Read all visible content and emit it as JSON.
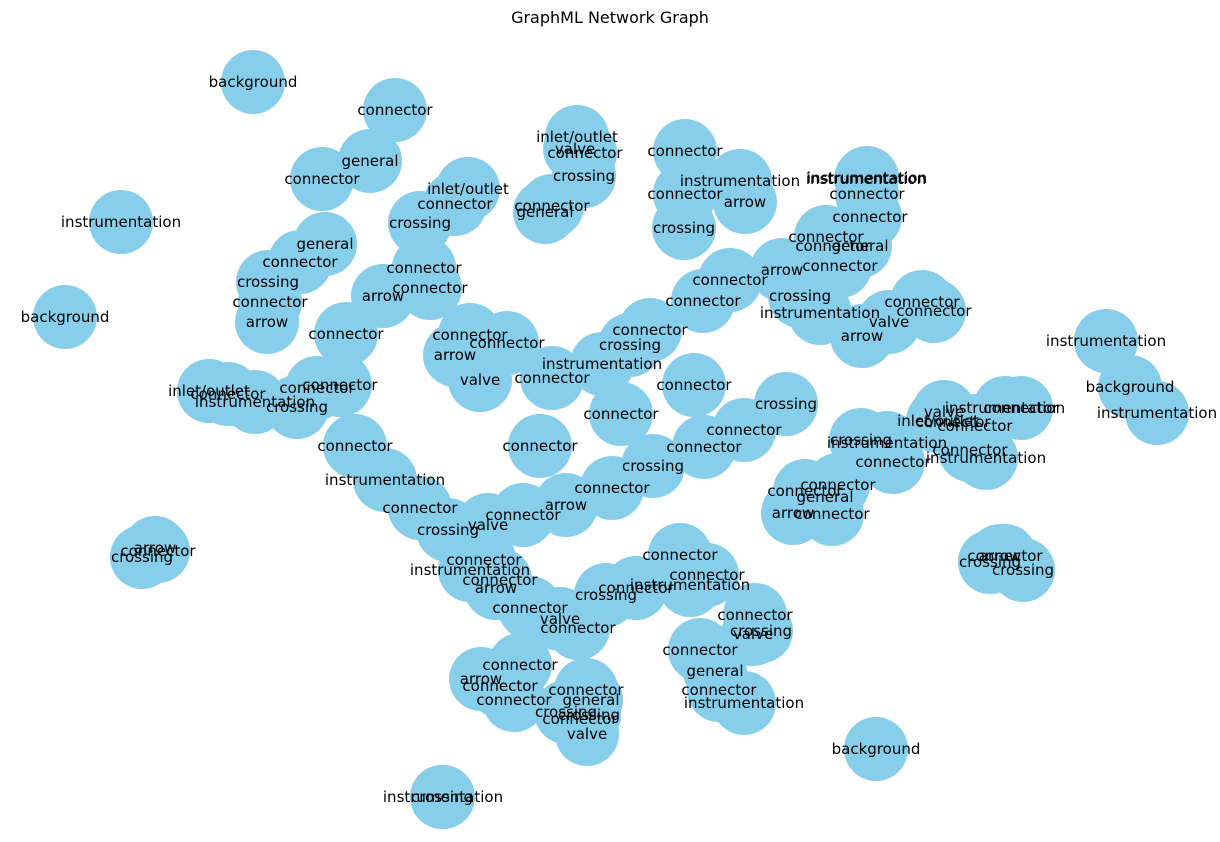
{
  "title": "GraphML Network Graph",
  "colors": {
    "node_fill": "#87ceeb",
    "label": "#000000",
    "background": "#ffffff"
  },
  "nodes": [
    {
      "id": "n1",
      "label": "background"
    },
    {
      "id": "n2",
      "label": "instrumentation"
    },
    {
      "id": "n3",
      "label": "background"
    },
    {
      "id": "n4",
      "label": "crossing"
    },
    {
      "id": "n5",
      "label": "arrow"
    },
    {
      "id": "n6",
      "label": "connector"
    },
    {
      "id": "n7",
      "label": "crossing"
    },
    {
      "id": "n8",
      "label": "background"
    },
    {
      "id": "n9",
      "label": "instrumentation"
    },
    {
      "id": "n10",
      "label": "instrumentation"
    },
    {
      "id": "n11",
      "label": "connector"
    },
    {
      "id": "n12",
      "label": "arrow"
    },
    {
      "id": "n13",
      "label": "crossing"
    },
    {
      "id": "n14",
      "label": "crossing"
    },
    {
      "id": "n15",
      "label": "background"
    },
    {
      "id": "n16",
      "label": "instrumentation"
    },
    {
      "id": "n17",
      "label": "instrumentation"
    },
    {
      "id": "n18",
      "label": "connector"
    },
    {
      "id": "n19",
      "label": "general"
    },
    {
      "id": "n20",
      "label": "connector"
    },
    {
      "id": "n21",
      "label": "inlet/outlet"
    },
    {
      "id": "n22",
      "label": "connector"
    },
    {
      "id": "n23",
      "label": "general"
    },
    {
      "id": "n24",
      "label": "connector"
    },
    {
      "id": "n25",
      "label": "arrow"
    },
    {
      "id": "n26",
      "label": "valve"
    },
    {
      "id": "n27",
      "label": "connector"
    },
    {
      "id": "n28",
      "label": "crossing"
    },
    {
      "id": "n29",
      "label": "instrumentation"
    },
    {
      "id": "n30",
      "label": "connector"
    },
    {
      "id": "n31",
      "label": "connector"
    },
    {
      "id": "n32",
      "label": "connector"
    },
    {
      "id": "n33",
      "label": "connector"
    },
    {
      "id": "n34",
      "label": "general"
    },
    {
      "id": "n35",
      "label": "connector"
    },
    {
      "id": "n36",
      "label": "general"
    },
    {
      "id": "n37",
      "label": "connector"
    },
    {
      "id": "n38",
      "label": "crossing"
    },
    {
      "id": "n39",
      "label": "connector"
    },
    {
      "id": "n40",
      "label": "arrow"
    },
    {
      "id": "n41",
      "label": "connector"
    },
    {
      "id": "n42",
      "label": "inlet/outlet"
    },
    {
      "id": "n43",
      "label": "connector"
    },
    {
      "id": "n44",
      "label": "crossing"
    },
    {
      "id": "n45",
      "label": "connector"
    },
    {
      "id": "n46",
      "label": "instrumentation"
    },
    {
      "id": "n47",
      "label": "arrow"
    },
    {
      "id": "n48",
      "label": "crossing"
    },
    {
      "id": "n49",
      "label": "connector"
    },
    {
      "id": "n50",
      "label": "valve"
    },
    {
      "id": "n51",
      "label": "connector"
    },
    {
      "id": "n52",
      "label": "connector"
    },
    {
      "id": "n53",
      "label": "arrow"
    },
    {
      "id": "n54",
      "label": "inlet/outlet"
    },
    {
      "id": "n55",
      "label": "connector"
    },
    {
      "id": "n56",
      "label": "instrumentation"
    },
    {
      "id": "n57",
      "label": "crossing"
    },
    {
      "id": "n58",
      "label": "connector"
    },
    {
      "id": "n59",
      "label": "inlet/outlet"
    },
    {
      "id": "n60",
      "label": "valve"
    },
    {
      "id": "n61",
      "label": "connector"
    },
    {
      "id": "n62",
      "label": "connector"
    },
    {
      "id": "n63",
      "label": "instrumentation"
    },
    {
      "id": "n64",
      "label": "connector"
    },
    {
      "id": "n65",
      "label": "connector"
    },
    {
      "id": "n66",
      "label": "instrumentation"
    },
    {
      "id": "n67",
      "label": "valve"
    },
    {
      "id": "n68",
      "label": "connector"
    },
    {
      "id": "n69",
      "label": "crossing"
    },
    {
      "id": "n70",
      "label": "general"
    },
    {
      "id": "n71",
      "label": "arrow"
    },
    {
      "id": "n72",
      "label": "connector"
    },
    {
      "id": "n73",
      "label": "connector"
    },
    {
      "id": "n74",
      "label": "connector"
    },
    {
      "id": "n75",
      "label": "crossing"
    },
    {
      "id": "n76",
      "label": "connector"
    },
    {
      "id": "n77",
      "label": "connector"
    },
    {
      "id": "n78",
      "label": "general"
    },
    {
      "id": "n79",
      "label": "connector"
    },
    {
      "id": "n80",
      "label": "instrumentation"
    },
    {
      "id": "n81",
      "label": "valve"
    },
    {
      "id": "n82",
      "label": "connector"
    },
    {
      "id": "n83",
      "label": "crossing"
    },
    {
      "id": "n84",
      "label": "connector"
    },
    {
      "id": "n85",
      "label": "connector"
    },
    {
      "id": "n86",
      "label": "instrumentation"
    },
    {
      "id": "n87",
      "label": "arrow"
    },
    {
      "id": "n88",
      "label": "connector"
    },
    {
      "id": "n89",
      "label": "valve"
    },
    {
      "id": "n90",
      "label": "connector"
    },
    {
      "id": "n91",
      "label": "crossing"
    },
    {
      "id": "n92",
      "label": "connector"
    },
    {
      "id": "n93",
      "label": "connector"
    },
    {
      "id": "n94",
      "label": "instrumentation"
    },
    {
      "id": "n95",
      "label": "connector"
    },
    {
      "id": "n96",
      "label": "arrow"
    },
    {
      "id": "n97",
      "label": "connector"
    },
    {
      "id": "n98",
      "label": "general"
    },
    {
      "id": "n99",
      "label": "connector"
    },
    {
      "id": "n100",
      "label": "crossing"
    },
    {
      "id": "n101",
      "label": "instrumentation"
    },
    {
      "id": "n102",
      "label": "connector"
    },
    {
      "id": "n103",
      "label": "connector"
    },
    {
      "id": "n104",
      "label": "connector"
    },
    {
      "id": "n105",
      "label": "arrow"
    },
    {
      "id": "n106",
      "label": "valve"
    },
    {
      "id": "n107",
      "label": "connector"
    },
    {
      "id": "n108",
      "label": "connector"
    },
    {
      "id": "n109",
      "label": "instrumentation"
    },
    {
      "id": "n110",
      "label": "crossing"
    },
    {
      "id": "n111",
      "label": "connector"
    },
    {
      "id": "n112",
      "label": "connector"
    },
    {
      "id": "n113",
      "label": "connector"
    },
    {
      "id": "n114",
      "label": "arrow"
    },
    {
      "id": "n115",
      "label": "crossing"
    },
    {
      "id": "n116",
      "label": "instrumentation"
    },
    {
      "id": "n117",
      "label": "connector"
    },
    {
      "id": "n118",
      "label": "connector"
    },
    {
      "id": "n119",
      "label": "connector"
    },
    {
      "id": "n120",
      "label": "instrumentation"
    },
    {
      "id": "n121",
      "label": "connector"
    },
    {
      "id": "n122",
      "label": "crossing"
    },
    {
      "id": "n123",
      "label": "valve"
    },
    {
      "id": "n124",
      "label": "connector"
    },
    {
      "id": "n125",
      "label": "arrow"
    },
    {
      "id": "n126",
      "label": "connector"
    },
    {
      "id": "n127",
      "label": "crossing"
    },
    {
      "id": "n128",
      "label": "connector"
    },
    {
      "id": "n129",
      "label": "connector"
    },
    {
      "id": "n130",
      "label": "crossing"
    },
    {
      "id": "n131",
      "label": "connector"
    },
    {
      "id": "n132",
      "label": "connector"
    },
    {
      "id": "n133",
      "label": "connector"
    }
  ]
}
